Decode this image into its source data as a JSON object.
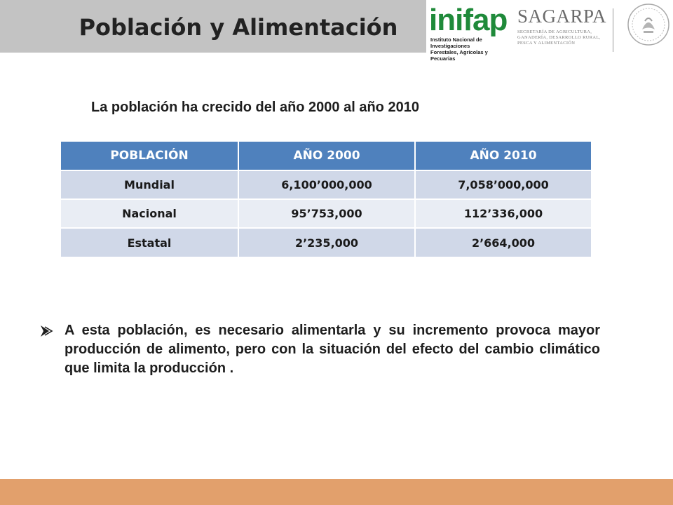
{
  "slide": {
    "title": "Población y Alimentación",
    "subtitle": "La población ha crecido del año 2000 al año 2010"
  },
  "logos": {
    "inifap_word": "inifap",
    "inifap_line1": "Instituto Nacional de Investigaciones",
    "inifap_line2": "Forestales, Agrícolas y Pecuarias",
    "sagarpa_word": "SAGARPA",
    "sagarpa_line1": "SECRETARÍA DE AGRICULTURA,",
    "sagarpa_line2": "GANADERÍA, DESARROLLO RURAL,",
    "sagarpa_line3": "PESCA Y ALIMENTACIÓN"
  },
  "table": {
    "headers": [
      "POBLACIÓN",
      "AÑO 2000",
      "AÑO 2010"
    ],
    "rows": [
      [
        "Mundial",
        "6,100’000,000",
        "7,058’000,000"
      ],
      [
        "Nacional",
        "95’753,000",
        "112’336,000"
      ],
      [
        "Estatal",
        "2’235,000",
        "2’664,000"
      ]
    ]
  },
  "bullet": {
    "text": "A esta población, es necesario alimentarla y su incremento provoca mayor producción de alimento, pero con la situación  del efecto del cambio climático que limita la producción ."
  },
  "colors": {
    "header_bg": "#4f81bd",
    "row_dark": "#d0d8e8",
    "row_light": "#e9edf4",
    "title_bar": "#c3c3c3",
    "footer_bar": "#e2a06c",
    "inifap_green": "#1f8a3a"
  }
}
